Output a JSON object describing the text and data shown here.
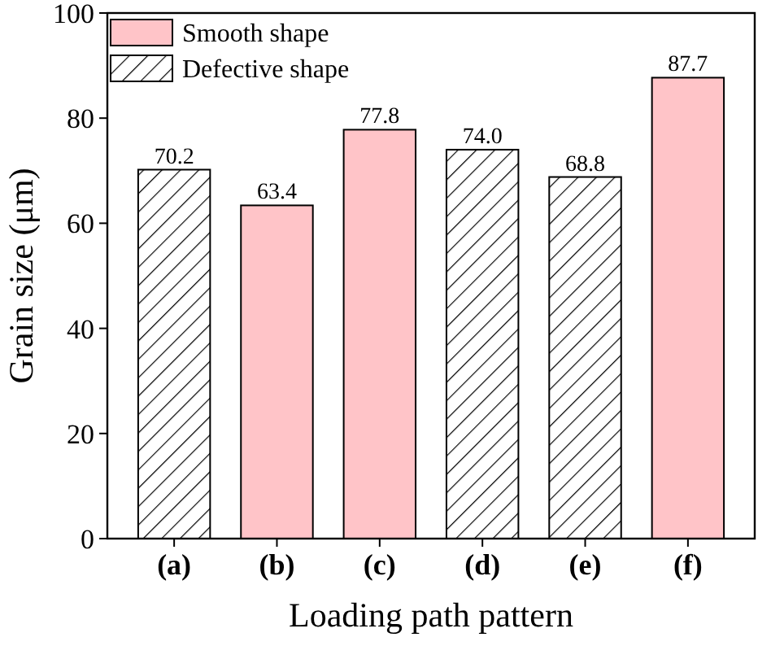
{
  "chart_data": {
    "type": "bar",
    "xlabel": "Loading path pattern",
    "ylabel": "Grain size (μm)",
    "categories": [
      "(a)",
      "(b)",
      "(c)",
      "(d)",
      "(e)",
      "(f)"
    ],
    "series": [
      {
        "name": "Smooth shape",
        "color": "#ffc4c8",
        "values": [
          null,
          63.4,
          77.8,
          null,
          null,
          87.7
        ],
        "value_labels": [
          null,
          "63.4",
          "77.8",
          null,
          null,
          "87.7"
        ]
      },
      {
        "name": "Defective shape",
        "color": "#000000",
        "values": [
          70.2,
          null,
          null,
          74.0,
          68.8,
          null
        ],
        "value_labels": [
          "70.2",
          null,
          null,
          "74.0",
          "68.8",
          null
        ]
      }
    ],
    "ylim": [
      0,
      100
    ],
    "yticks": [
      0,
      20,
      40,
      60,
      80,
      100
    ],
    "legend": "top left"
  }
}
